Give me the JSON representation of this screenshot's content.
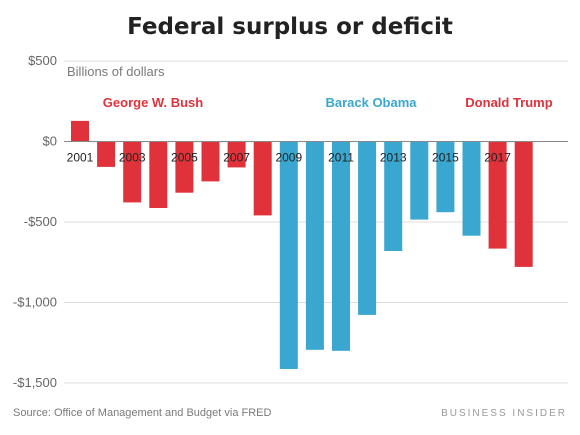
{
  "chart_data": {
    "type": "bar",
    "title": "Federal surplus or deficit",
    "unit_label": "Billions of dollars",
    "categories": [
      "2001",
      "2002",
      "2003",
      "2004",
      "2005",
      "2006",
      "2007",
      "2008",
      "2009",
      "2010",
      "2011",
      "2012",
      "2013",
      "2014",
      "2015",
      "2016",
      "2017",
      "2018"
    ],
    "x_tick_labels": [
      "2001",
      "2003",
      "2005",
      "2007",
      "2009",
      "2011",
      "2013",
      "2015",
      "2017"
    ],
    "values": [
      128,
      -158,
      -378,
      -413,
      -318,
      -248,
      -161,
      -459,
      -1413,
      -1294,
      -1300,
      -1077,
      -680,
      -485,
      -439,
      -585,
      -665,
      -779
    ],
    "colors": [
      "#e0323b",
      "#e0323b",
      "#e0323b",
      "#e0323b",
      "#e0323b",
      "#e0323b",
      "#e0323b",
      "#e0323b",
      "#39a7cf",
      "#39a7cf",
      "#39a7cf",
      "#39a7cf",
      "#39a7cf",
      "#39a7cf",
      "#39a7cf",
      "#39a7cf",
      "#e0323b",
      "#e0323b"
    ],
    "ylim": [
      -1500,
      500
    ],
    "yticks": [
      500,
      0,
      -500,
      -1000,
      -1500
    ],
    "ytick_labels": [
      "$500",
      "$0",
      "-$500",
      "-$1,000",
      "-$1,500"
    ],
    "grid": true,
    "annotations": [
      {
        "text": "George W. Bush",
        "color": "#e0323b"
      },
      {
        "text": "Barack Obama",
        "color": "#39a7cf"
      },
      {
        "text": "Donald Trump",
        "color": "#e0323b"
      }
    ],
    "source": "Source: Office of Management and Budget via FRED",
    "brand": "BUSINESS INSIDER"
  }
}
